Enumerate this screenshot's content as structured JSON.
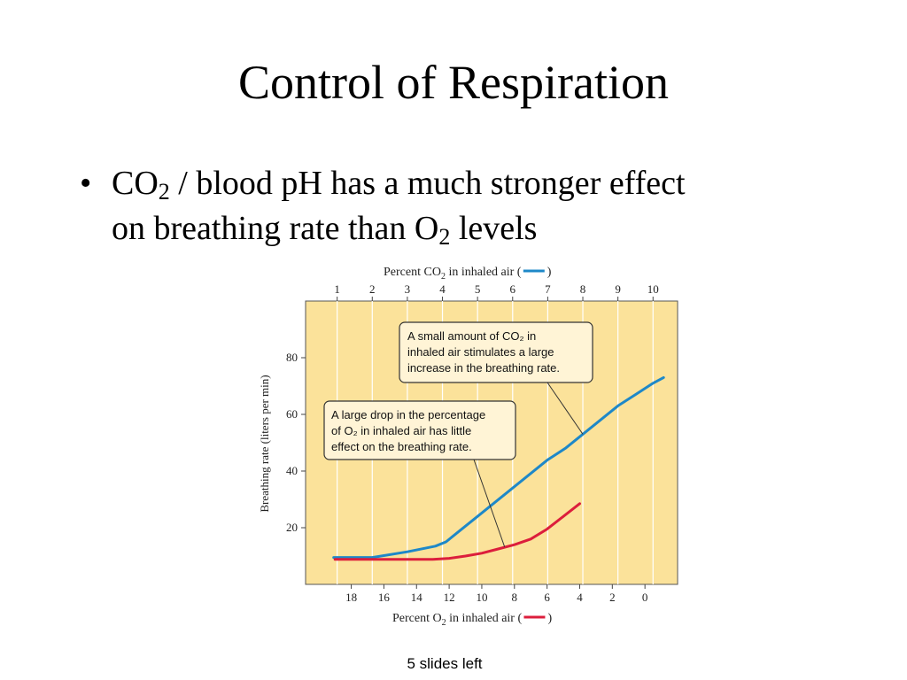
{
  "slide": {
    "title": "Control of Respiration",
    "bullet": {
      "marker": "•",
      "line1_a": "CO",
      "line1_sub": "2",
      "line1_b": " / blood pH has a much stronger effect",
      "line2_a": "on breathing rate than O",
      "line2_sub": "2",
      "line2_b": " levels"
    },
    "footer": "5 slides left"
  },
  "chart_data": {
    "type": "line",
    "top_axis": {
      "label_pre": "Percent CO",
      "label_sub": "2",
      "label_post": " in inhaled air (",
      "label_close": ")",
      "ticks": [
        "1",
        "2",
        "3",
        "4",
        "5",
        "6",
        "7",
        "8",
        "9",
        "10"
      ],
      "range": [
        0.1,
        10.7
      ]
    },
    "bottom_axis": {
      "label_pre": "Percent O",
      "label_sub": "2",
      "label_post": " in inhaled air (",
      "label_close": ")",
      "ticks": [
        "18",
        "16",
        "14",
        "12",
        "10",
        "8",
        "6",
        "4",
        "2",
        "0"
      ],
      "range": [
        20.8,
        -2
      ]
    },
    "y_axis": {
      "label": "Breathing rate (liters per min)",
      "ticks": [
        "20",
        "40",
        "60",
        "80"
      ],
      "range": [
        0,
        100
      ]
    },
    "series": [
      {
        "axis": "top",
        "color": "#1e88c8",
        "points": [
          [
            0.9,
            9.5
          ],
          [
            2,
            9.5
          ],
          [
            3,
            11.5
          ],
          [
            3.8,
            13.5
          ],
          [
            4.1,
            15
          ],
          [
            4.5,
            19
          ],
          [
            5,
            24
          ],
          [
            5.5,
            29
          ],
          [
            6,
            34
          ],
          [
            6.5,
            39
          ],
          [
            7,
            44
          ],
          [
            7.5,
            48
          ],
          [
            8,
            53
          ],
          [
            8.5,
            58
          ],
          [
            9,
            63
          ],
          [
            9.5,
            67
          ],
          [
            10,
            71
          ],
          [
            10.3,
            73
          ]
        ]
      },
      {
        "axis": "bottom",
        "color": "#dc1e3c",
        "points": [
          [
            19,
            8.8
          ],
          [
            17,
            8.8
          ],
          [
            15,
            8.8
          ],
          [
            13,
            8.8
          ],
          [
            12,
            9.2
          ],
          [
            11,
            10
          ],
          [
            10,
            11
          ],
          [
            9,
            12.5
          ],
          [
            8,
            14
          ],
          [
            7,
            16
          ],
          [
            6,
            19.5
          ],
          [
            5,
            24
          ],
          [
            4,
            28.5
          ]
        ]
      }
    ],
    "callouts": [
      {
        "lines": [
          "A small amount of CO₂ in",
          "inhaled air stimulates a large",
          "increase in the breathing rate."
        ]
      },
      {
        "lines": [
          "A large drop in the percentage",
          "of O₂ in inhaled air has little",
          "effect on the breathing rate."
        ]
      }
    ],
    "background": "#fbe29a"
  }
}
